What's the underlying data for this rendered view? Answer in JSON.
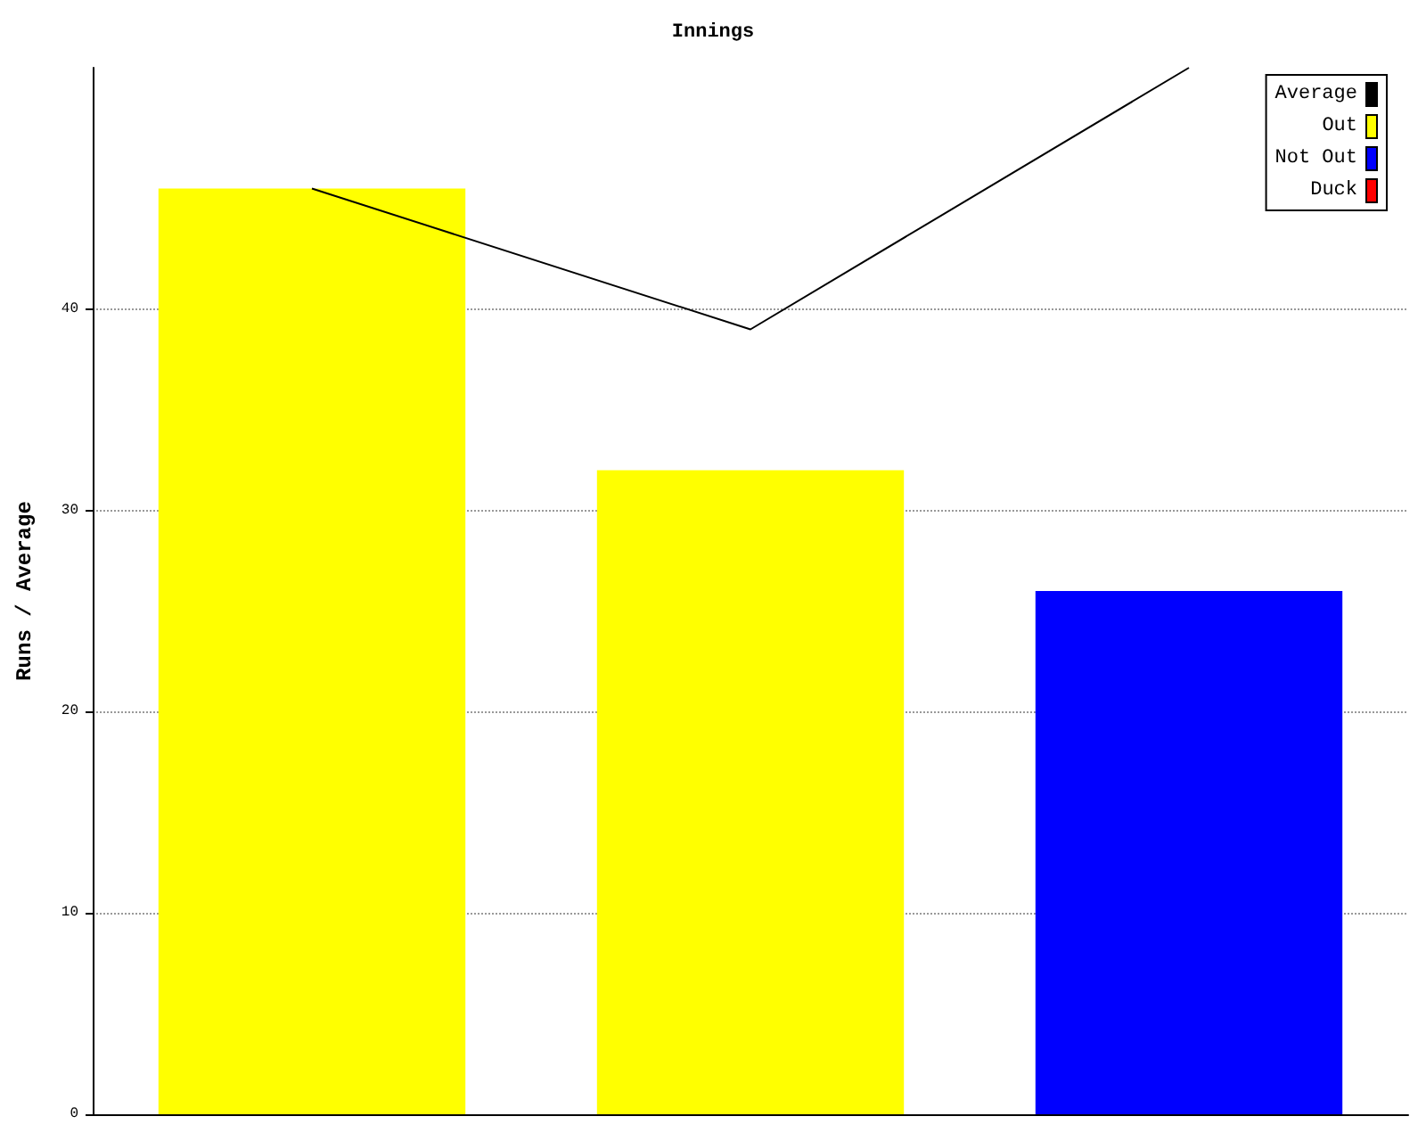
{
  "chart_data": {
    "type": "bar",
    "title": "Innings",
    "ylabel": "Runs / Average",
    "categories": [
      null,
      null,
      null
    ],
    "stacked": true,
    "series": [
      {
        "name": "Average",
        "type": "line",
        "color": "#000000",
        "values": [
          46,
          39,
          52
        ]
      },
      {
        "name": "Out",
        "color": "#ffff00",
        "values": [
          46,
          32,
          null
        ]
      },
      {
        "name": "Not Out",
        "color": "#0000ff",
        "values": [
          null,
          null,
          26
        ]
      },
      {
        "name": "Duck",
        "color": "#ff0000",
        "values": [
          null,
          null,
          null
        ]
      }
    ],
    "ylim": [
      0,
      52
    ],
    "yticks": [
      0,
      10,
      20,
      30,
      40
    ],
    "grid": "y",
    "legend": "top right",
    "marker": "none",
    "line_style": "solid"
  }
}
